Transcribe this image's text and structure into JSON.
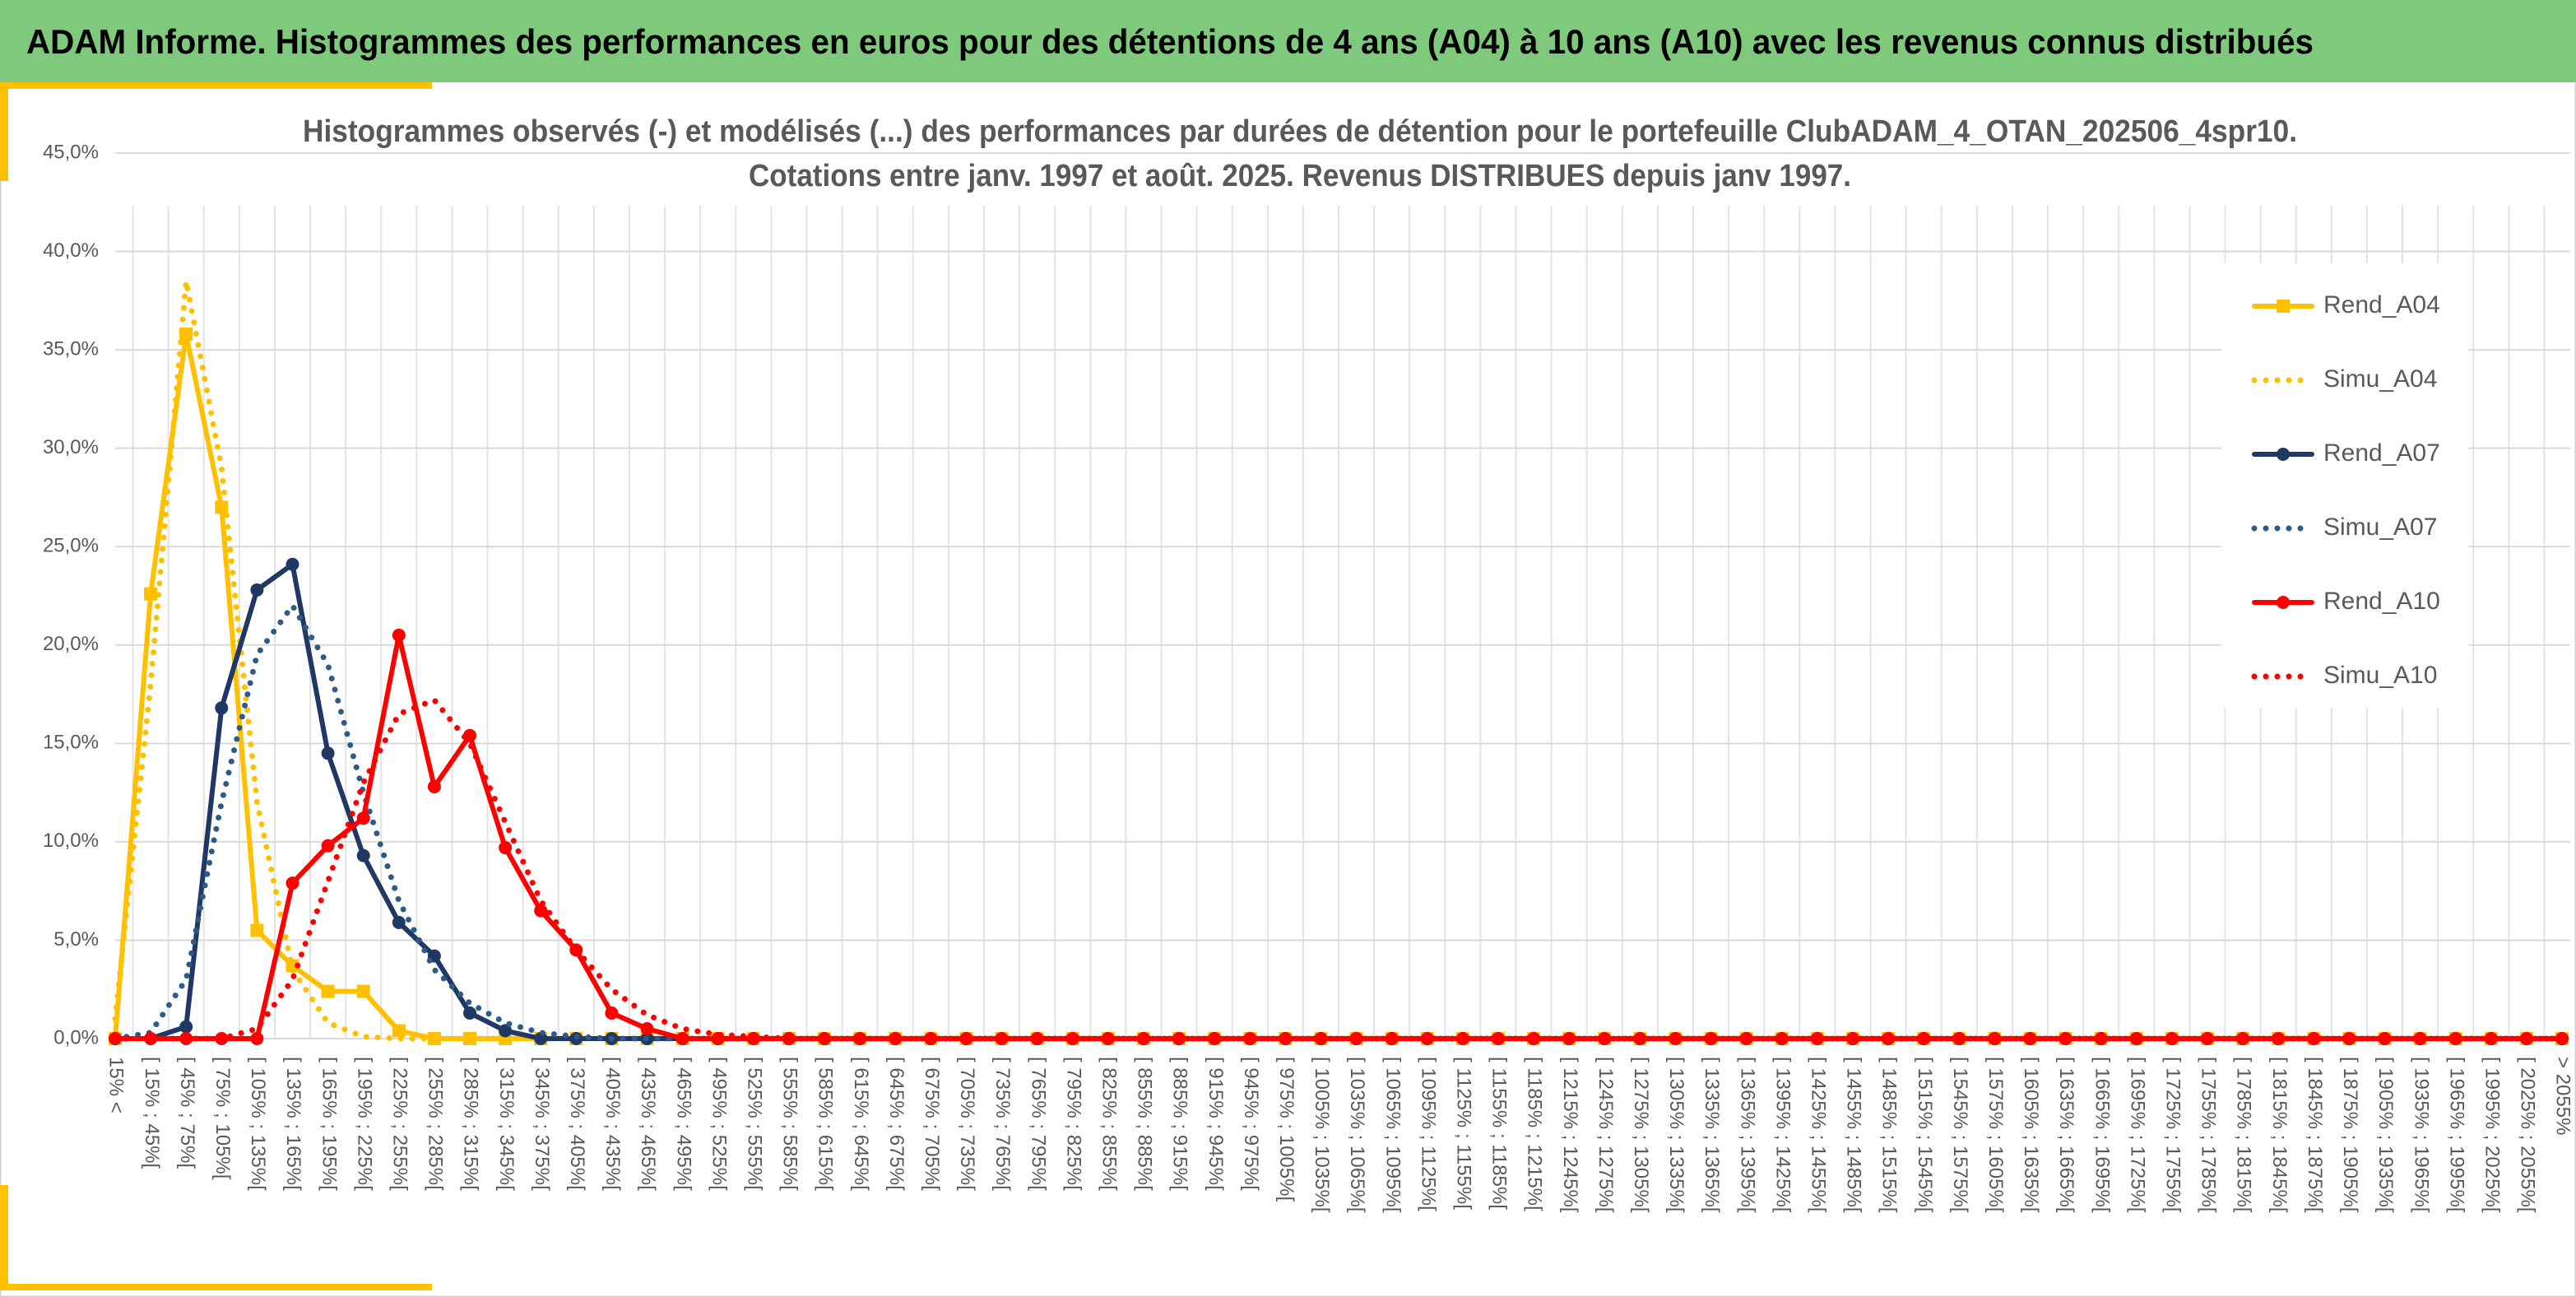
{
  "header": {
    "title": "ADAM Informe. Histogrammes des performances en euros pour des détentions de 4 ans (A04) à 10 ans (A10) avec les revenus connus distribués"
  },
  "chart_data": {
    "type": "line",
    "title": [
      "Histogrammes observés (-) et modélisés (...) des performances par durées de détention pour le portefeuille ClubADAM_4_OTAN_202506_4spr10.",
      "Cotations entre janv. 1997 et août. 2025. Revenus DISTRIBUES depuis janv 1997."
    ],
    "categories": [
      "15% <",
      "[ 15% ; 45%[",
      "[ 45% ; 75%[",
      "[ 75% ; 105%[",
      "[ 105% ; 135%[",
      "[ 135% ; 165%[",
      "[ 165% ; 195%[",
      "[ 195% ; 225%[",
      "[ 225% ; 255%[",
      "[ 255% ; 285%[",
      "[ 285% ; 315%[",
      "[ 315% ; 345%[",
      "[ 345% ; 375%[",
      "[ 375% ; 405%[",
      "[ 405% ; 435%[",
      "[ 435% ; 465%[",
      "[ 465% ; 495%[",
      "[ 495% ; 525%[",
      "[ 525% ; 555%[",
      "[ 555% ; 585%[",
      "[ 585% ; 615%[",
      "[ 615% ; 645%[",
      "[ 645% ; 675%[",
      "[ 675% ; 705%[",
      "[ 705% ; 735%[",
      "[ 735% ; 765%[",
      "[ 765% ; 795%[",
      "[ 795% ; 825%[",
      "[ 825% ; 855%[",
      "[ 855% ; 885%[",
      "[ 885% ; 915%[",
      "[ 915% ; 945%[",
      "[ 945% ; 975%[",
      "[ 975% ; 1005%[",
      "[ 1005% ; 1035%[",
      "[ 1035% ; 1065%[",
      "[ 1065% ; 1095%[",
      "[ 1095% ; 1125%[",
      "[ 1125% ; 1155%[",
      "[ 1155% ; 1185%[",
      "[ 1185% ; 1215%[",
      "[ 1215% ; 1245%[",
      "[ 1245% ; 1275%[",
      "[ 1275% ; 1305%[",
      "[ 1305% ; 1335%[",
      "[ 1335% ; 1365%[",
      "[ 1365% ; 1395%[",
      "[ 1395% ; 1425%[",
      "[ 1425% ; 1455%[",
      "[ 1455% ; 1485%[",
      "[ 1485% ; 1515%[",
      "[ 1515% ; 1545%[",
      "[ 1545% ; 1575%[",
      "[ 1575% ; 1605%[",
      "[ 1605% ; 1635%[",
      "[ 1635% ; 1665%[",
      "[ 1665% ; 1695%[",
      "[ 1695% ; 1725%[",
      "[ 1725% ; 1755%[",
      "[ 1755% ; 1785%[",
      "[ 1785% ; 1815%[",
      "[ 1815% ; 1845%[",
      "[ 1845% ; 1875%[",
      "[ 1875% ; 1905%[",
      "[ 1905% ; 1935%[",
      "[ 1935% ; 1965%[",
      "[ 1965% ; 1995%[",
      "[ 1995% ; 2025%[",
      "[ 2025% ; 2055%[",
      "> 2055%"
    ],
    "series": [
      {
        "name": "Rend_A04",
        "color": "#ffc000",
        "line_style": "solid",
        "marker": "square",
        "values": [
          0,
          22.6,
          35.8,
          27.0,
          5.5,
          3.7,
          2.4,
          2.4,
          0.4,
          0,
          0,
          0,
          0,
          0,
          0,
          0,
          0,
          0,
          0,
          0,
          0,
          0,
          0,
          0,
          0,
          0,
          0,
          0,
          0,
          0,
          0,
          0,
          0,
          0,
          0,
          0,
          0,
          0,
          0,
          0,
          0,
          0,
          0,
          0,
          0,
          0,
          0,
          0,
          0,
          0,
          0,
          0,
          0,
          0,
          0,
          0,
          0,
          0,
          0,
          0,
          0,
          0,
          0,
          0,
          0,
          0,
          0,
          0,
          0,
          0
        ]
      },
      {
        "name": "Simu_A04",
        "color": "#ffc000",
        "line_style": "dotted",
        "marker": "none",
        "values": [
          1.0,
          18,
          38.5,
          29,
          12,
          3.5,
          0.8,
          0.1,
          0,
          0,
          0,
          0,
          0,
          0,
          0,
          0,
          0,
          0,
          0,
          0,
          0,
          0,
          0,
          0,
          0,
          0,
          0,
          0,
          0,
          0,
          0,
          0,
          0,
          0,
          0,
          0,
          0,
          0,
          0,
          0,
          0,
          0,
          0,
          0,
          0,
          0,
          0,
          0,
          0,
          0,
          0,
          0,
          0,
          0,
          0,
          0,
          0,
          0,
          0,
          0,
          0,
          0,
          0,
          0,
          0,
          0,
          0,
          0,
          0,
          0
        ]
      },
      {
        "name": "Rend_A07",
        "color": "#1f3864",
        "line_style": "solid",
        "marker": "circle",
        "values": [
          0,
          0,
          0.6,
          16.8,
          22.8,
          24.1,
          14.5,
          9.3,
          5.9,
          4.2,
          1.3,
          0.4,
          0,
          0,
          0,
          0,
          0,
          0,
          0,
          0,
          0,
          0,
          0,
          0,
          0,
          0,
          0,
          0,
          0,
          0,
          0,
          0,
          0,
          0,
          0,
          0,
          0,
          0,
          0,
          0,
          0,
          0,
          0,
          0,
          0,
          0,
          0,
          0,
          0,
          0,
          0,
          0,
          0,
          0,
          0,
          0,
          0,
          0,
          0,
          0,
          0,
          0,
          0,
          0,
          0,
          0,
          0,
          0,
          0,
          0
        ]
      },
      {
        "name": "Simu_A07",
        "color": "#2e5a88",
        "line_style": "dotted",
        "marker": "none",
        "values": [
          0,
          0.3,
          3,
          12,
          19.5,
          22,
          19,
          12.5,
          7,
          3.5,
          1.8,
          0.8,
          0.3,
          0.1,
          0,
          0,
          0,
          0,
          0,
          0,
          0,
          0,
          0,
          0,
          0,
          0,
          0,
          0,
          0,
          0,
          0,
          0,
          0,
          0,
          0,
          0,
          0,
          0,
          0,
          0,
          0,
          0,
          0,
          0,
          0,
          0,
          0,
          0,
          0,
          0,
          0,
          0,
          0,
          0,
          0,
          0,
          0,
          0,
          0,
          0,
          0,
          0,
          0,
          0,
          0,
          0,
          0,
          0,
          0,
          0
        ]
      },
      {
        "name": "Rend_A10",
        "color": "#ff0000",
        "line_style": "solid",
        "marker": "circle",
        "values": [
          0,
          0,
          0,
          0,
          0,
          7.9,
          9.8,
          11.2,
          20.5,
          12.8,
          15.4,
          9.7,
          6.5,
          4.5,
          1.3,
          0.5,
          0,
          0,
          0,
          0,
          0,
          0,
          0,
          0,
          0,
          0,
          0,
          0,
          0,
          0,
          0,
          0,
          0,
          0,
          0,
          0,
          0,
          0,
          0,
          0,
          0,
          0,
          0,
          0,
          0,
          0,
          0,
          0,
          0,
          0,
          0,
          0,
          0,
          0,
          0,
          0,
          0,
          0,
          0,
          0,
          0,
          0,
          0,
          0,
          0,
          0,
          0,
          0,
          0,
          0
        ]
      },
      {
        "name": "Simu_A10",
        "color": "#ff0000",
        "line_style": "dotted",
        "marker": "none",
        "values": [
          0,
          0,
          0,
          0,
          0.5,
          3,
          8,
          13,
          16.5,
          17.2,
          15,
          11,
          7,
          4.5,
          2.5,
          1.2,
          0.5,
          0.2,
          0.1,
          0,
          0,
          0,
          0,
          0,
          0,
          0,
          0,
          0,
          0,
          0,
          0,
          0,
          0,
          0,
          0,
          0,
          0,
          0,
          0,
          0,
          0,
          0,
          0,
          0,
          0,
          0,
          0,
          0,
          0,
          0,
          0,
          0,
          0,
          0,
          0,
          0,
          0,
          0,
          0,
          0,
          0,
          0,
          0,
          0,
          0,
          0,
          0,
          0,
          0,
          0
        ]
      }
    ],
    "ylim": [
      0,
      45
    ],
    "yticks": [
      {
        "value": 0,
        "label": "0,0%"
      },
      {
        "value": 5,
        "label": "5,0%"
      },
      {
        "value": 10,
        "label": "10,0%"
      },
      {
        "value": 15,
        "label": "15,0%"
      },
      {
        "value": 20,
        "label": "20,0%"
      },
      {
        "value": 25,
        "label": "25,0%"
      },
      {
        "value": 30,
        "label": "30,0%"
      },
      {
        "value": 35,
        "label": "35,0%"
      },
      {
        "value": 40,
        "label": "40,0%"
      },
      {
        "value": 45,
        "label": "45,0%"
      }
    ],
    "grid": true,
    "legend": "right"
  }
}
